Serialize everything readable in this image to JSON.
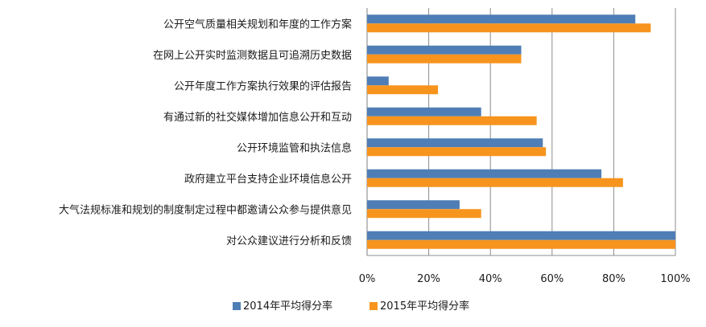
{
  "chart_data": {
    "type": "bar",
    "orientation": "horizontal",
    "title": "",
    "xlabel": "",
    "ylabel": "",
    "xlim": [
      0,
      1
    ],
    "x_ticks": [
      "0%",
      "20%",
      "40%",
      "60%",
      "80%",
      "100%"
    ],
    "grid": "vertical",
    "legend_position": "bottom",
    "categories": [
      "公开空气质量相关规划和年度的工作方案",
      "在网上公开实时监测数据且可追溯历史数据",
      "公开年度工作方案执行效果的评估报告",
      "有通过新的社交媒体增加信息公开和互动",
      "公开环境监管和执法信息",
      "政府建立平台支持企业环境信息公开",
      "大气法规标准和规划的制度制定过程中都邀请公众参与提供意见",
      "对公众建议进行分析和反馈"
    ],
    "series": [
      {
        "name": "2014年平均得分率",
        "color": "#4f7eb6",
        "values": [
          0.87,
          0.5,
          0.07,
          0.37,
          0.57,
          0.76,
          0.3,
          1.0
        ]
      },
      {
        "name": "2015年平均得分率",
        "color": "#f7941d",
        "values": [
          0.92,
          0.5,
          0.23,
          0.55,
          0.58,
          0.83,
          0.37,
          1.0
        ]
      }
    ]
  }
}
